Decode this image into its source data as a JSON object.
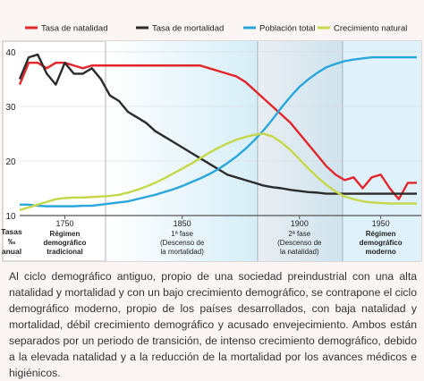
{
  "chart_data": {
    "type": "line",
    "legend": "top",
    "grid": true,
    "y_label": [
      "Tasas",
      "‰",
      "anual"
    ],
    "categories": [
      null,
      null,
      null,
      null,
      null,
      "1750",
      null,
      null,
      null,
      null,
      null,
      null,
      null,
      null,
      null,
      null,
      null,
      null,
      "1850",
      null,
      null,
      null,
      null,
      null,
      null,
      null,
      null,
      null,
      null,
      null,
      null,
      "1900",
      null,
      null,
      null,
      null,
      null,
      null,
      null,
      null,
      "1950",
      null,
      null,
      null,
      null
    ],
    "phases": [
      {
        "lines": [
          "Régimen",
          "demográfico",
          "tradicional"
        ],
        "bold": true
      },
      {
        "lines": [
          "1ª fase",
          "(Descenso de",
          "la mortalidad)"
        ],
        "bold": false
      },
      {
        "lines": [
          "2ª fase",
          "(Descenso de",
          "la natalidad)"
        ],
        "bold": false
      },
      {
        "lines": [
          "Régimen",
          "demográfico",
          "moderno"
        ],
        "bold": true
      }
    ],
    "ylim": [
      10,
      42
    ],
    "yticks": [
      10,
      20,
      30,
      40
    ],
    "series": [
      {
        "name": "Tasa de natalidad",
        "color": "#e2262b",
        "values": [
          34,
          38,
          38,
          37,
          38,
          38,
          37.5,
          37,
          37.5,
          37.5,
          37.5,
          37.5,
          37.5,
          37.5,
          37.5,
          37.5,
          37.5,
          37.5,
          37.5,
          37.5,
          37.5,
          37,
          36.5,
          36,
          35.5,
          34.5,
          33,
          31.5,
          30,
          28.5,
          27,
          25,
          23,
          21,
          19,
          17.5,
          16.5,
          17,
          15,
          17,
          17.5,
          15,
          13,
          16,
          16
        ]
      },
      {
        "name": "Tasa de mortalidad",
        "color": "#2b2b2b",
        "values": [
          35,
          39,
          39.5,
          36,
          34,
          38,
          36,
          36,
          37,
          35,
          32,
          31,
          29,
          28,
          27,
          25.5,
          24.5,
          23.5,
          22.5,
          21.5,
          20.5,
          19.5,
          18.5,
          17.5,
          17,
          16.5,
          16,
          15.5,
          15.2,
          15,
          14.7,
          14.5,
          14.3,
          14.2,
          14,
          14,
          14,
          14,
          14,
          14,
          14,
          14,
          14,
          14,
          14
        ]
      },
      {
        "name": "Población total",
        "color": "#29a6dc",
        "values": [
          12,
          12,
          11.8,
          11.7,
          11.7,
          11.7,
          11.7,
          11.8,
          11.8,
          12,
          12.2,
          12.4,
          12.6,
          13,
          13.4,
          13.8,
          14.3,
          14.8,
          15.4,
          16.1,
          16.8,
          17.6,
          18.5,
          19.6,
          20.8,
          22.2,
          23.8,
          25.6,
          27.6,
          29.8,
          31.8,
          33.6,
          35,
          36.2,
          37.2,
          37.8,
          38.3,
          38.6,
          38.8,
          39,
          39,
          39,
          39,
          39,
          39
        ]
      },
      {
        "name": "Crecimiento natural",
        "color": "#c5d84a",
        "values": [
          11,
          11.5,
          12,
          12.5,
          13,
          13.2,
          13.3,
          13.3,
          13.4,
          13.5,
          13.6,
          13.8,
          14.2,
          14.7,
          15.3,
          16,
          16.8,
          17.7,
          18.6,
          19.5,
          20.5,
          21.5,
          22.4,
          23.2,
          23.9,
          24.4,
          24.8,
          25,
          24.5,
          23.4,
          22,
          20.3,
          18.6,
          17,
          15.6,
          14.4,
          13.5,
          13,
          12.6,
          12.4,
          12.3,
          12.2,
          12.2,
          12.2,
          12.2
        ]
      }
    ]
  },
  "text": "Al ciclo demográfico antiguo, propio de una sociedad preindustrial con una alta natalidad y mortalidad y con un bajo crecimiento demográfico, se contrapone el ciclo demográfico moderno, propio de los países desarrollados, con baja natalidad y mortalidad, débil crecimiento demográfico y acusado envejecimiento. Ambos están separados por un periodo de transición, de intenso crecimiento demográfico, debido a la elevada natalidad y a la reducción de la mortalidad por los avances médicos e higiénicos."
}
